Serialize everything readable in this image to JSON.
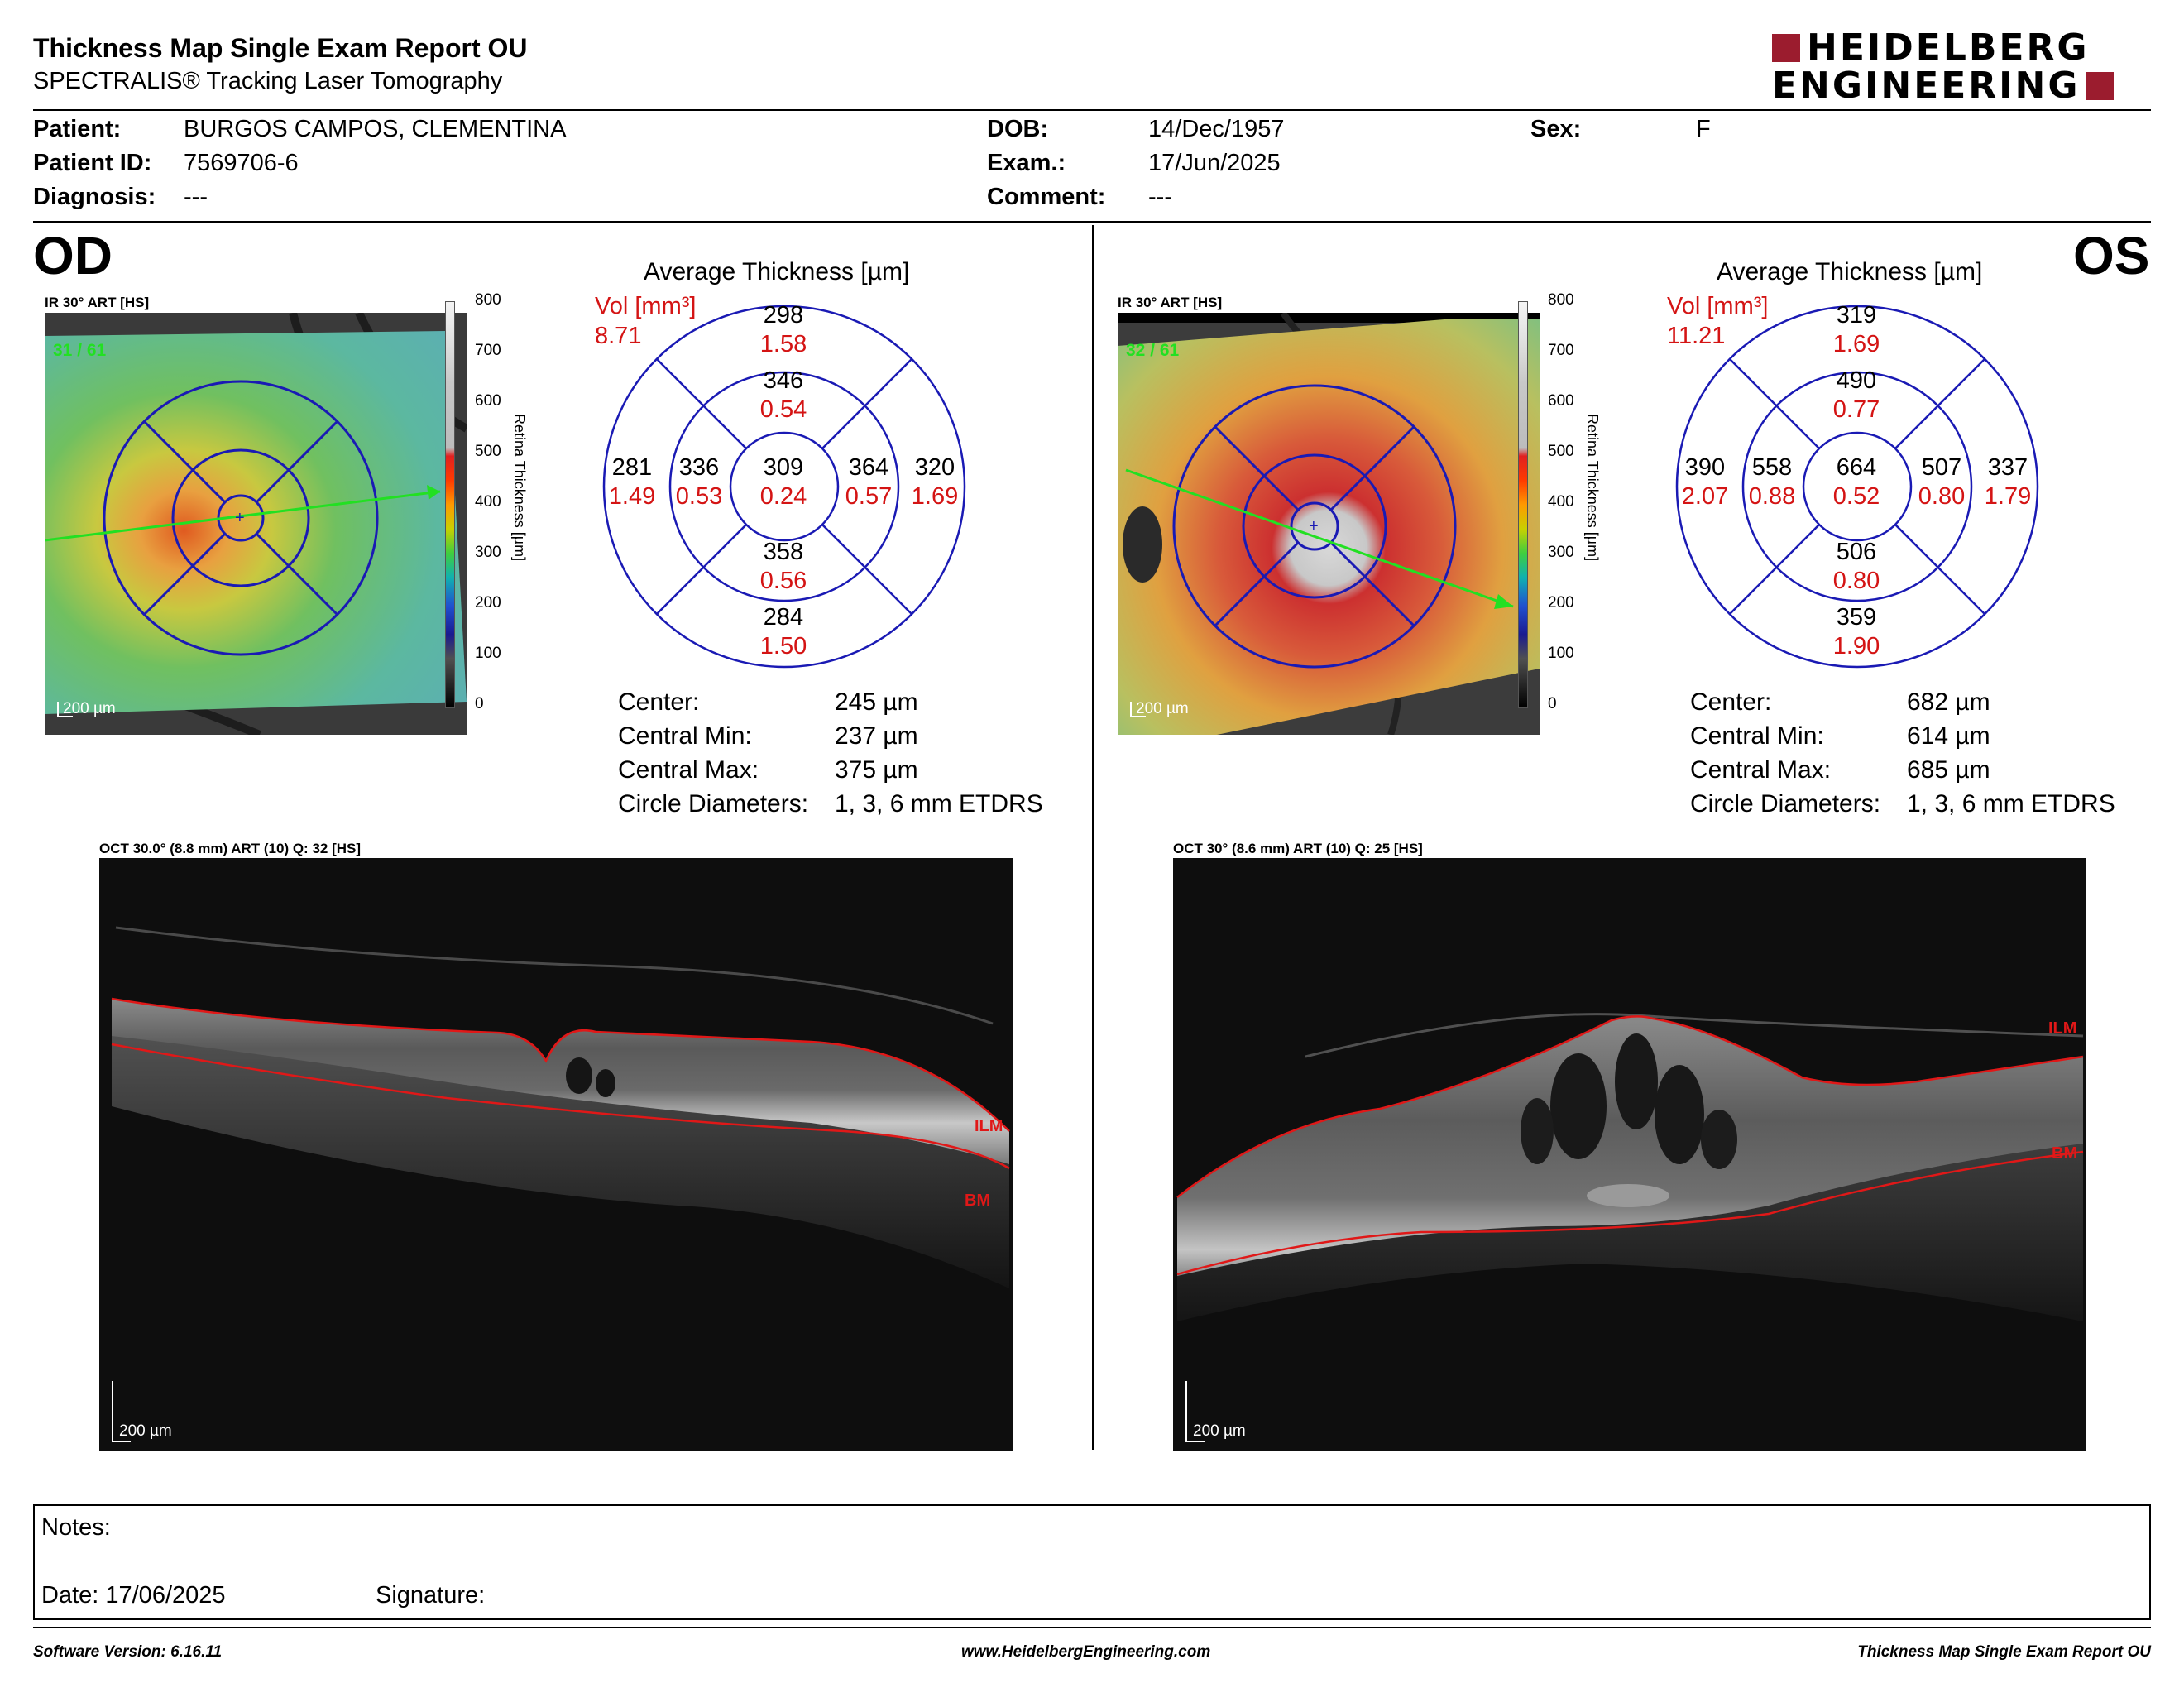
{
  "header": {
    "title": "Thickness Map Single Exam Report OU",
    "subtitle": "SPECTRALIS® Tracking Laser Tomography",
    "logo_line1": "HEIDELBERG",
    "logo_line2": "ENGINEERING"
  },
  "patient": {
    "patient_label": "Patient:",
    "patient_value": "BURGOS CAMPOS, CLEMENTINA",
    "id_label": "Patient ID:",
    "id_value": "7569706-6",
    "diagnosis_label": "Diagnosis:",
    "diagnosis_value": "---",
    "dob_label": "DOB:",
    "dob_value": "14/Dec/1957",
    "exam_label": "Exam.:",
    "exam_value": "17/Jun/2025",
    "comment_label": "Comment:",
    "comment_value": "---",
    "sex_label": "Sex:",
    "sex_value": "F"
  },
  "scale": {
    "title": "Retina Thickness [µm]",
    "ticks": [
      "800",
      "700",
      "600",
      "500",
      "400",
      "300",
      "200",
      "100",
      "0"
    ]
  },
  "od": {
    "eye": "OD",
    "ir_label": "IR 30° ART [HS]",
    "ir_frames": "31 / 61",
    "ir_scale": "200 µm",
    "avg_title": "Average Thickness [µm]",
    "vol_label": "Vol [mm³]",
    "vol_total": "8.71",
    "grid": {
      "outer_top": [
        "298",
        "1.58"
      ],
      "inner_top": [
        "346",
        "0.54"
      ],
      "outer_left": [
        "281",
        "1.49"
      ],
      "inner_left": [
        "336",
        "0.53"
      ],
      "center": [
        "309",
        "0.24"
      ],
      "inner_right": [
        "364",
        "0.57"
      ],
      "outer_right": [
        "320",
        "1.69"
      ],
      "inner_bottom": [
        "358",
        "0.56"
      ],
      "outer_bottom": [
        "284",
        "1.50"
      ]
    },
    "stats": {
      "center_k": "Center:",
      "center_v": "245 µm",
      "min_k": "Central Min:",
      "min_v": "237 µm",
      "max_k": "Central Max:",
      "max_v": "375 µm",
      "diam_k": "Circle Diameters:",
      "diam_v": "1, 3, 6 mm ETDRS"
    },
    "oct_label": "OCT 30.0° (8.8 mm) ART (10) Q: 32 [HS]",
    "oct_ilm": "ILM",
    "oct_bm": "BM",
    "oct_scale": "200 µm"
  },
  "os": {
    "eye": "OS",
    "ir_label": "IR 30° ART [HS]",
    "ir_frames": "32 / 61",
    "ir_scale": "200 µm",
    "avg_title": "Average Thickness [µm]",
    "vol_label": "Vol [mm³]",
    "vol_total": "11.21",
    "grid": {
      "outer_top": [
        "319",
        "1.69"
      ],
      "inner_top": [
        "490",
        "0.77"
      ],
      "outer_left": [
        "390",
        "2.07"
      ],
      "inner_left": [
        "558",
        "0.88"
      ],
      "center": [
        "664",
        "0.52"
      ],
      "inner_right": [
        "507",
        "0.80"
      ],
      "outer_right": [
        "337",
        "1.79"
      ],
      "inner_bottom": [
        "506",
        "0.80"
      ],
      "outer_bottom": [
        "359",
        "1.90"
      ]
    },
    "stats": {
      "center_k": "Center:",
      "center_v": "682 µm",
      "min_k": "Central Min:",
      "min_v": "614 µm",
      "max_k": "Central Max:",
      "max_v": "685 µm",
      "diam_k": "Circle Diameters:",
      "diam_v": "1, 3, 6 mm ETDRS"
    },
    "oct_label": "OCT 30° (8.6 mm) ART (10) Q: 25 [HS]",
    "oct_ilm": "ILM",
    "oct_bm": "BM",
    "oct_scale": "200 µm"
  },
  "notes": {
    "notes_label": "Notes:",
    "date_label": "Date: 17/06/2025",
    "signature_label": "Signature:"
  },
  "footer": {
    "software": "Software Version: 6.16.11",
    "website": "www.HeidelbergEngineering.com",
    "report": "Thickness Map Single Exam Report OU"
  },
  "colors": {
    "volume_red": "#d41414",
    "grid_blue": "#1a1ab4",
    "logo_red": "#9b1c2e",
    "seg_red": "#e01818",
    "scan_green": "#22e022"
  }
}
